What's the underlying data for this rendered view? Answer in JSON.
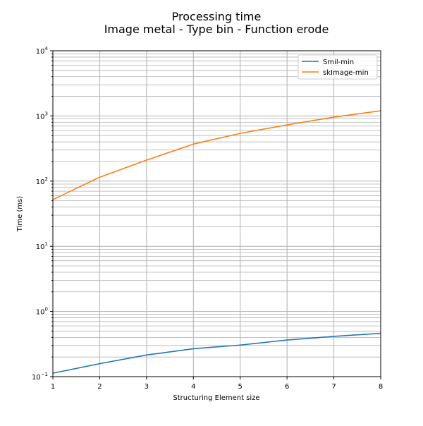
{
  "chart_data": {
    "type": "line",
    "title_line1": "Processing time",
    "title_line2": "Image metal - Type bin - Function erode",
    "xlabel": "Structuring Element size",
    "ylabel": "Time (ms)",
    "xlim": [
      1,
      8
    ],
    "ylim": [
      0.1,
      10000
    ],
    "yscale": "log",
    "grid": true,
    "legend_position": "upper right",
    "x_ticks": [
      1,
      2,
      3,
      4,
      5,
      6,
      7,
      8
    ],
    "y_tick_labels": [
      {
        "base": "10",
        "exp": "−1",
        "value": 0.1
      },
      {
        "base": "10",
        "exp": "0",
        "value": 1
      },
      {
        "base": "10",
        "exp": "1",
        "value": 10
      },
      {
        "base": "10",
        "exp": "2",
        "value": 100
      },
      {
        "base": "10",
        "exp": "3",
        "value": 1000
      },
      {
        "base": "10",
        "exp": "4",
        "value": 10000
      }
    ],
    "x": [
      1,
      2,
      3,
      4,
      5,
      6,
      7,
      8
    ],
    "series": [
      {
        "name": "Smil-min",
        "color": "#1f77b4",
        "values": [
          0.113,
          0.158,
          0.215,
          0.268,
          0.305,
          0.365,
          0.415,
          0.462
        ]
      },
      {
        "name": "skImage-min",
        "color": "#ff7f0e",
        "values": [
          52,
          115,
          210,
          370,
          540,
          730,
          960,
          1200
        ]
      }
    ]
  }
}
